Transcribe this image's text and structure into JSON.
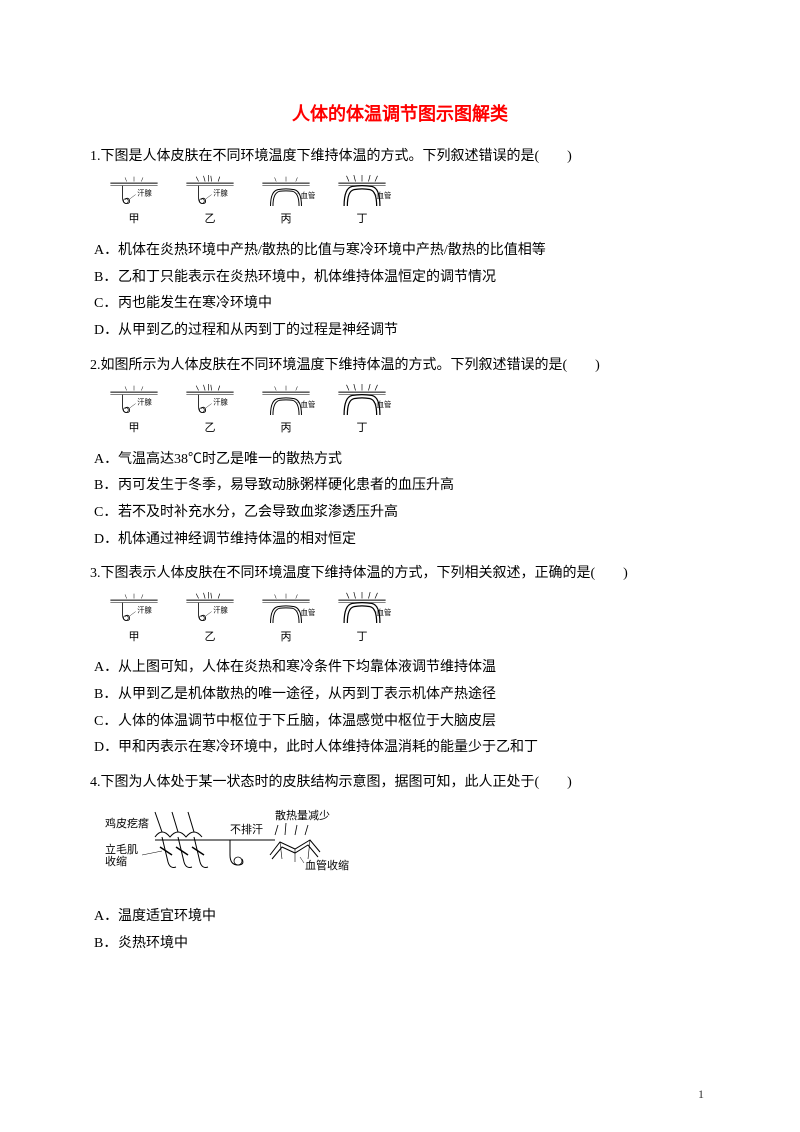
{
  "title": "人体的体温调节图示图解类",
  "title_color": "#ff0000",
  "page_number": "1",
  "questions": [
    {
      "number": "1",
      "text": "下图是人体皮肤在不同环境温度下维持体温的方式。下列叙述错误的是(　　)",
      "diagram_labels": [
        "甲",
        "乙",
        "丙",
        "丁"
      ],
      "side_labels": [
        "汗腺",
        "汗腺",
        "血管",
        "血管"
      ],
      "options": [
        {
          "letter": "A．",
          "text": "机体在炎热环境中产热/散热的比值与寒冷环境中产热/散热的比值相等"
        },
        {
          "letter": "B．",
          "text": "乙和丁只能表示在炎热环境中，机体维持体温恒定的调节情况"
        },
        {
          "letter": "C．",
          "text": "丙也能发生在寒冷环境中"
        },
        {
          "letter": "D．",
          "text": "从甲到乙的过程和从丙到丁的过程是神经调节"
        }
      ]
    },
    {
      "number": "2",
      "text": "如图所示为人体皮肤在不同环境温度下维持体温的方式。下列叙述错误的是(　　)",
      "diagram_labels": [
        "甲",
        "乙",
        "丙",
        "丁"
      ],
      "side_labels": [
        "汗腺",
        "汗腺",
        "血管",
        "血管"
      ],
      "options": [
        {
          "letter": "A．",
          "text": "气温高达38℃时乙是唯一的散热方式"
        },
        {
          "letter": "B．",
          "text": "丙可发生于冬季，易导致动脉粥样硬化患者的血压升高"
        },
        {
          "letter": "C．",
          "text": "若不及时补充水分，乙会导致血浆渗透压升高"
        },
        {
          "letter": "D．",
          "text": "机体通过神经调节维持体温的相对恒定"
        }
      ]
    },
    {
      "number": "3",
      "text": "下图表示人体皮肤在不同环境温度下维持体温的方式，下列相关叙述，正确的是(　　)",
      "diagram_labels": [
        "甲",
        "乙",
        "丙",
        "丁"
      ],
      "side_labels": [
        "汗腺",
        "汗腺",
        "血管",
        "血管"
      ],
      "options": [
        {
          "letter": "A．",
          "text": "从上图可知，人体在炎热和寒冷条件下均靠体液调节维持体温"
        },
        {
          "letter": "B．",
          "text": "从甲到乙是机体散热的唯一途径，从丙到丁表示机体产热途径"
        },
        {
          "letter": "C．",
          "text": "人体的体温调节中枢位于下丘脑，体温感觉中枢位于大脑皮层"
        },
        {
          "letter": "D．",
          "text": "甲和丙表示在寒冷环境中，此时人体维持体温消耗的能量少于乙和丁"
        }
      ]
    },
    {
      "number": "4",
      "text": "下图为人体处于某一状态时的皮肤结构示意图，据图可知，此人正处于(　　)",
      "skin_diagram": true,
      "skin_labels": {
        "goosebumps": "鸡皮疙瘩",
        "muscle": "立毛肌收缩",
        "no_sweat": "不排汗",
        "less_heat": "散热量减少",
        "vessel": "血管收缩"
      },
      "options": [
        {
          "letter": "A．",
          "text": "温度适宜环境中"
        },
        {
          "letter": "B．",
          "text": "炎热环境中"
        }
      ]
    }
  ]
}
